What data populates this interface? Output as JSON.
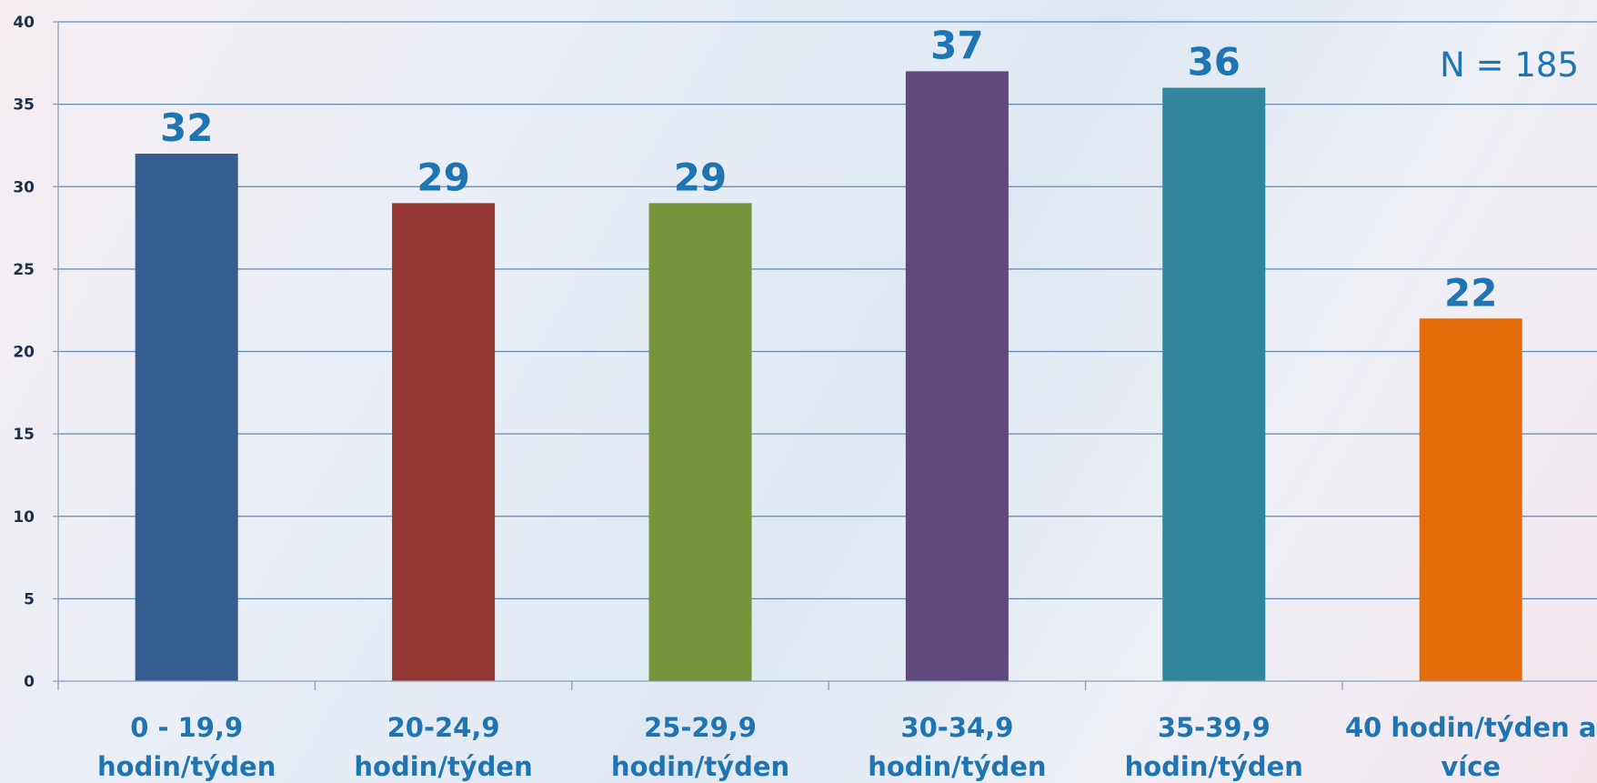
{
  "chart_data": {
    "type": "bar",
    "categories": [
      [
        "0 - 19,9",
        "hodin/týden"
      ],
      [
        "20-24,9",
        "hodin/týden"
      ],
      [
        "25-29,9",
        "hodin/týden"
      ],
      [
        "30-34,9",
        "hodin/týden"
      ],
      [
        "35-39,9",
        "hodin/týden"
      ],
      [
        "40 hodin/týden a",
        "více"
      ]
    ],
    "values": [
      32,
      29,
      29,
      37,
      36,
      22
    ],
    "colors": [
      "#355d8f",
      "#953735",
      "#77933c",
      "#5f4a7b",
      "#31859c",
      "#e46c0a"
    ],
    "ylim": [
      0,
      40
    ],
    "yticks": [
      0,
      5,
      10,
      15,
      20,
      25,
      30,
      35,
      40
    ],
    "grid": true,
    "annotation": "N = 185",
    "title": "",
    "xlabel": "",
    "ylabel": ""
  }
}
